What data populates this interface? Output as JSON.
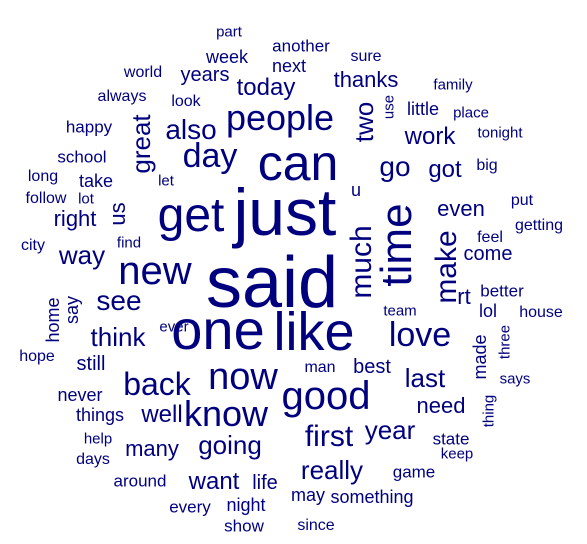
{
  "color": "#00007f",
  "words": [
    {
      "text": "said",
      "size": 72,
      "r": false
    },
    {
      "text": "just",
      "size": 66,
      "r": false
    },
    {
      "text": "one",
      "size": 56,
      "r": false
    },
    {
      "text": "like",
      "size": 54,
      "r": false
    },
    {
      "text": "can",
      "size": 50,
      "r": false
    },
    {
      "text": "get",
      "size": 48,
      "r": false
    },
    {
      "text": "time",
      "size": 44,
      "r": true
    },
    {
      "text": "new",
      "size": 40,
      "r": false
    },
    {
      "text": "good",
      "size": 40,
      "r": false
    },
    {
      "text": "now",
      "size": 38,
      "r": false
    },
    {
      "text": "know",
      "size": 36,
      "r": false
    },
    {
      "text": "people",
      "size": 36,
      "r": false
    },
    {
      "text": "day",
      "size": 34,
      "r": false
    },
    {
      "text": "love",
      "size": 34,
      "r": false
    },
    {
      "text": "back",
      "size": 32,
      "r": false
    },
    {
      "text": "much",
      "size": 30,
      "r": true
    },
    {
      "text": "make",
      "size": 30,
      "r": true
    },
    {
      "text": "first",
      "size": 30,
      "r": false
    },
    {
      "text": "see",
      "size": 28,
      "r": false
    },
    {
      "text": "go",
      "size": 28,
      "r": false
    },
    {
      "text": "great",
      "size": 26,
      "r": true
    },
    {
      "text": "also",
      "size": 28,
      "r": false
    },
    {
      "text": "think",
      "size": 26,
      "r": false
    },
    {
      "text": "going",
      "size": 26,
      "r": false
    },
    {
      "text": "last",
      "size": 26,
      "r": false
    },
    {
      "text": "year",
      "size": 26,
      "r": false
    },
    {
      "text": "really",
      "size": 26,
      "r": false
    },
    {
      "text": "two",
      "size": 26,
      "r": true
    },
    {
      "text": "way",
      "size": 26,
      "r": false
    },
    {
      "text": "today",
      "size": 24,
      "r": false
    },
    {
      "text": "well",
      "size": 24,
      "r": false
    },
    {
      "text": "want",
      "size": 24,
      "r": false
    },
    {
      "text": "got",
      "size": 24,
      "r": false
    },
    {
      "text": "work",
      "size": 24,
      "r": false
    },
    {
      "text": "thanks",
      "size": 22,
      "r": false
    },
    {
      "text": "right",
      "size": 22,
      "r": false
    },
    {
      "text": "us",
      "size": 22,
      "r": true
    },
    {
      "text": "many",
      "size": 22,
      "r": false
    },
    {
      "text": "even",
      "size": 22,
      "r": false
    },
    {
      "text": "need",
      "size": 22,
      "r": false
    },
    {
      "text": "rt",
      "size": 22,
      "r": false
    },
    {
      "text": "come",
      "size": 20,
      "r": false
    },
    {
      "text": "still",
      "size": 20,
      "r": false
    },
    {
      "text": "years",
      "size": 20,
      "r": false
    },
    {
      "text": "best",
      "size": 20,
      "r": false
    },
    {
      "text": "life",
      "size": 20,
      "r": false
    },
    {
      "text": "night",
      "size": 18,
      "r": false
    },
    {
      "text": "may",
      "size": 18,
      "r": false
    },
    {
      "text": "something",
      "size": 18,
      "r": false
    },
    {
      "text": "little",
      "size": 18,
      "r": false
    },
    {
      "text": "never",
      "size": 18,
      "r": false
    },
    {
      "text": "lol",
      "size": 18,
      "r": false
    },
    {
      "text": "week",
      "size": 18,
      "r": false
    },
    {
      "text": "next",
      "size": 18,
      "r": false
    },
    {
      "text": "made",
      "size": 18,
      "r": true
    },
    {
      "text": "take",
      "size": 18,
      "r": false
    },
    {
      "text": "u",
      "size": 18,
      "r": false
    },
    {
      "text": "things",
      "size": 18,
      "r": false
    },
    {
      "text": "home",
      "size": 18,
      "r": true
    },
    {
      "text": "say",
      "size": 18,
      "r": true
    },
    {
      "text": "better",
      "size": 17,
      "r": false
    },
    {
      "text": "every",
      "size": 17,
      "r": false
    },
    {
      "text": "around",
      "size": 17,
      "r": false
    },
    {
      "text": "another",
      "size": 17,
      "r": false
    },
    {
      "text": "game",
      "size": 17,
      "r": false
    },
    {
      "text": "school",
      "size": 17,
      "r": false
    },
    {
      "text": "happy",
      "size": 17,
      "r": false
    },
    {
      "text": "state",
      "size": 17,
      "r": false
    },
    {
      "text": "show",
      "size": 17,
      "r": false
    },
    {
      "text": "since",
      "size": 16,
      "r": false
    },
    {
      "text": "world",
      "size": 16,
      "r": false
    },
    {
      "text": "always",
      "size": 16,
      "r": false
    },
    {
      "text": "long",
      "size": 16,
      "r": false
    },
    {
      "text": "follow",
      "size": 16,
      "r": false
    },
    {
      "text": "city",
      "size": 16,
      "r": false
    },
    {
      "text": "hope",
      "size": 16,
      "r": false
    },
    {
      "text": "days",
      "size": 16,
      "r": false
    },
    {
      "text": "help",
      "size": 15,
      "r": false
    },
    {
      "text": "man",
      "size": 16,
      "r": false
    },
    {
      "text": "team",
      "size": 15,
      "r": false
    },
    {
      "text": "ever",
      "size": 15,
      "r": false
    },
    {
      "text": "find",
      "size": 15,
      "r": false
    },
    {
      "text": "feel",
      "size": 16,
      "r": false
    },
    {
      "text": "getting",
      "size": 16,
      "r": false
    },
    {
      "text": "put",
      "size": 16,
      "r": false
    },
    {
      "text": "big",
      "size": 16,
      "r": false
    },
    {
      "text": "tonight",
      "size": 15,
      "r": false
    },
    {
      "text": "place",
      "size": 15,
      "r": false
    },
    {
      "text": "family",
      "size": 15,
      "r": false
    },
    {
      "text": "sure",
      "size": 16,
      "r": false
    },
    {
      "text": "part",
      "size": 15,
      "r": false
    },
    {
      "text": "look",
      "size": 16,
      "r": false
    },
    {
      "text": "let",
      "size": 15,
      "r": false
    },
    {
      "text": "lot",
      "size": 15,
      "r": false
    },
    {
      "text": "use",
      "size": 15,
      "r": true
    },
    {
      "text": "house",
      "size": 16,
      "r": false
    },
    {
      "text": "three",
      "size": 15,
      "r": true
    },
    {
      "text": "says",
      "size": 15,
      "r": false
    },
    {
      "text": "thing",
      "size": 15,
      "r": true
    },
    {
      "text": "keep",
      "size": 15,
      "r": false
    }
  ]
}
